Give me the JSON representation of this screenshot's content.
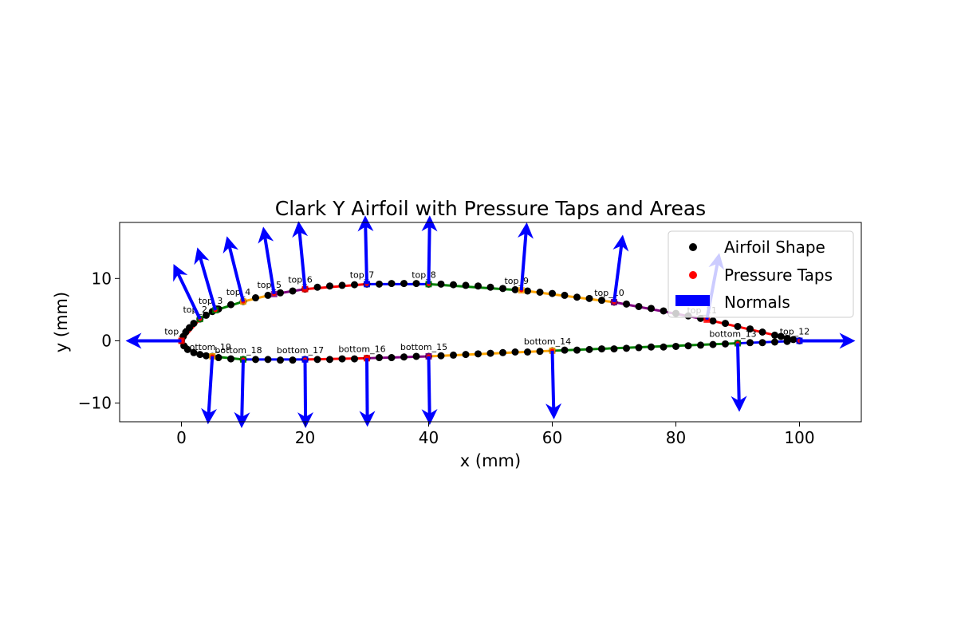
{
  "chart_data": {
    "type": "scatter",
    "title": "Clark Y Airfoil with Pressure Taps and Areas",
    "xlabel": "x (mm)",
    "ylabel": "y (mm)",
    "xlim": [
      -10,
      110
    ],
    "ylim": [
      -13,
      19
    ],
    "xticks": [
      0,
      20,
      40,
      60,
      80,
      100
    ],
    "yticks": [
      -10,
      0,
      10
    ],
    "grid": false,
    "legend_position": "top-right",
    "legend": [
      {
        "label": "Airfoil Shape",
        "marker": "circle",
        "color": "#000000"
      },
      {
        "label": "Pressure Taps",
        "marker": "circle",
        "color": "#ff0000"
      },
      {
        "label": "Normals",
        "marker": "bar",
        "color": "#0000ff"
      }
    ],
    "series": [
      {
        "name": "Airfoil Shape",
        "color": "#000000",
        "points": [
          [
            0,
            0
          ],
          [
            0.3,
            0.7
          ],
          [
            0.7,
            1.4
          ],
          [
            1.3,
            2.1
          ],
          [
            2.0,
            2.8
          ],
          [
            3.0,
            3.5
          ],
          [
            4.0,
            4.1
          ],
          [
            5.0,
            4.7
          ],
          [
            6.0,
            5.1
          ],
          [
            8.0,
            5.8
          ],
          [
            10.0,
            6.3
          ],
          [
            12.0,
            6.9
          ],
          [
            14.0,
            7.3
          ],
          [
            16.0,
            7.7
          ],
          [
            18.0,
            8.0
          ],
          [
            20.0,
            8.3
          ],
          [
            22.0,
            8.6
          ],
          [
            24.0,
            8.8
          ],
          [
            26.0,
            8.9
          ],
          [
            28.0,
            9.0
          ],
          [
            30.0,
            9.1
          ],
          [
            32.0,
            9.1
          ],
          [
            34.0,
            9.2
          ],
          [
            36.0,
            9.2
          ],
          [
            38.0,
            9.2
          ],
          [
            40.0,
            9.1
          ],
          [
            42.0,
            9.1
          ],
          [
            44.0,
            9.0
          ],
          [
            46.0,
            8.9
          ],
          [
            48.0,
            8.8
          ],
          [
            50.0,
            8.6
          ],
          [
            52.0,
            8.4
          ],
          [
            54.0,
            8.2
          ],
          [
            56.0,
            8.0
          ],
          [
            58.0,
            7.8
          ],
          [
            60.0,
            7.6
          ],
          [
            62.0,
            7.3
          ],
          [
            64.0,
            7.0
          ],
          [
            66.0,
            6.8
          ],
          [
            68.0,
            6.5
          ],
          [
            70.0,
            6.2
          ],
          [
            72.0,
            5.9
          ],
          [
            74.0,
            5.5
          ],
          [
            76.0,
            5.2
          ],
          [
            78.0,
            4.8
          ],
          [
            80.0,
            4.4
          ],
          [
            82.0,
            4.0
          ],
          [
            84.0,
            3.6
          ],
          [
            86.0,
            3.2
          ],
          [
            88.0,
            2.8
          ],
          [
            90.0,
            2.3
          ],
          [
            92.0,
            1.9
          ],
          [
            94.0,
            1.4
          ],
          [
            96.0,
            0.9
          ],
          [
            97.0,
            0.7
          ],
          [
            98.0,
            0.4
          ],
          [
            99.0,
            0.2
          ],
          [
            100.0,
            0.0
          ],
          [
            0.4,
            -0.8
          ],
          [
            1.0,
            -1.4
          ],
          [
            2.0,
            -1.9
          ],
          [
            3.0,
            -2.2
          ],
          [
            4.0,
            -2.4
          ],
          [
            5.0,
            -2.5
          ],
          [
            6.0,
            -2.7
          ],
          [
            8.0,
            -2.9
          ],
          [
            10.0,
            -3.0
          ],
          [
            12.0,
            -3.0
          ],
          [
            14.0,
            -3.0
          ],
          [
            16.0,
            -3.1
          ],
          [
            18.0,
            -3.1
          ],
          [
            20.0,
            -3.0
          ],
          [
            22.0,
            -3.0
          ],
          [
            24.0,
            -3.0
          ],
          [
            26.0,
            -2.9
          ],
          [
            28.0,
            -2.9
          ],
          [
            30.0,
            -2.8
          ],
          [
            32.0,
            -2.7
          ],
          [
            34.0,
            -2.7
          ],
          [
            36.0,
            -2.6
          ],
          [
            38.0,
            -2.5
          ],
          [
            40.0,
            -2.5
          ],
          [
            42.0,
            -2.4
          ],
          [
            44.0,
            -2.3
          ],
          [
            46.0,
            -2.2
          ],
          [
            48.0,
            -2.1
          ],
          [
            50.0,
            -2.0
          ],
          [
            52.0,
            -1.9
          ],
          [
            54.0,
            -1.8
          ],
          [
            56.0,
            -1.8
          ],
          [
            58.0,
            -1.7
          ],
          [
            60.0,
            -1.6
          ],
          [
            62.0,
            -1.5
          ],
          [
            64.0,
            -1.5
          ],
          [
            66.0,
            -1.4
          ],
          [
            68.0,
            -1.3
          ],
          [
            70.0,
            -1.3
          ],
          [
            72.0,
            -1.2
          ],
          [
            74.0,
            -1.1
          ],
          [
            76.0,
            -1.0
          ],
          [
            78.0,
            -1.0
          ],
          [
            80.0,
            -0.9
          ],
          [
            82.0,
            -0.8
          ],
          [
            84.0,
            -0.7
          ],
          [
            86.0,
            -0.6
          ],
          [
            88.0,
            -0.5
          ],
          [
            90.0,
            -0.4
          ],
          [
            92.0,
            -0.3
          ],
          [
            94.0,
            -0.3
          ],
          [
            96.0,
            -0.2
          ],
          [
            98.0,
            -0.1
          ]
        ]
      }
    ],
    "pressure_taps": [
      {
        "label": "top_1",
        "x": 0,
        "y": 0,
        "nx": -10,
        "ny": 0,
        "area_color": "#ff0000"
      },
      {
        "label": "top_2",
        "x": 3.0,
        "y": 3.5,
        "nx": -4.8,
        "ny": 7.9,
        "area_color": "#008000"
      },
      {
        "label": "top_3",
        "x": 5.5,
        "y": 4.9,
        "nx": -3.3,
        "ny": 9.1,
        "area_color": "#008000"
      },
      {
        "label": "top_4",
        "x": 10.0,
        "y": 6.3,
        "nx": -3.0,
        "ny": 9.5,
        "area_color": "#ffa500"
      },
      {
        "label": "top_5",
        "x": 15.0,
        "y": 7.5,
        "nx": -2.0,
        "ny": 9.8,
        "area_color": "#800080"
      },
      {
        "label": "top_6",
        "x": 20.0,
        "y": 8.3,
        "nx": -1.2,
        "ny": 9.9,
        "area_color": "#ff0000"
      },
      {
        "label": "top_7",
        "x": 30.0,
        "y": 9.1,
        "nx": -0.3,
        "ny": 10.0,
        "area_color": "#0000ff"
      },
      {
        "label": "top_8",
        "x": 40.0,
        "y": 9.1,
        "nx": 0.2,
        "ny": 10.0,
        "area_color": "#008000"
      },
      {
        "label": "top_9",
        "x": 55.0,
        "y": 8.1,
        "nx": 1.0,
        "ny": 9.9,
        "area_color": "#ffa500"
      },
      {
        "label": "top_10",
        "x": 70.0,
        "y": 6.2,
        "nx": 1.6,
        "ny": 9.8,
        "area_color": "#800080"
      },
      {
        "label": "top_11",
        "x": 85.0,
        "y": 3.4,
        "nx": 2.3,
        "ny": 9.7,
        "area_color": "#ff0000"
      },
      {
        "label": "top_12",
        "x": 100.0,
        "y": 0,
        "nx": 10,
        "ny": 0,
        "area_color": "#0000ff"
      },
      {
        "label": "bottom_13",
        "x": 90.0,
        "y": -0.4,
        "nx": 0.3,
        "ny": -10.0,
        "area_color": "#008000"
      },
      {
        "label": "bottom_14",
        "x": 60.0,
        "y": -1.6,
        "nx": 0.3,
        "ny": -10.0,
        "area_color": "#ffa500"
      },
      {
        "label": "bottom_15",
        "x": 40.0,
        "y": -2.5,
        "nx": 0.2,
        "ny": -10.0,
        "area_color": "#800080"
      },
      {
        "label": "bottom_16",
        "x": 30.0,
        "y": -2.8,
        "nx": 0.1,
        "ny": -10.0,
        "area_color": "#ff0000"
      },
      {
        "label": "bottom_17",
        "x": 20.0,
        "y": -3.0,
        "nx": 0.1,
        "ny": -10.0,
        "area_color": "#0000ff"
      },
      {
        "label": "bottom_18",
        "x": 10.0,
        "y": -3.0,
        "nx": -0.3,
        "ny": -10.0,
        "area_color": "#008000"
      },
      {
        "label": "bottom_19",
        "x": 5.0,
        "y": -2.5,
        "nx": -0.8,
        "ny": -9.9,
        "area_color": "#ffa500"
      }
    ]
  }
}
